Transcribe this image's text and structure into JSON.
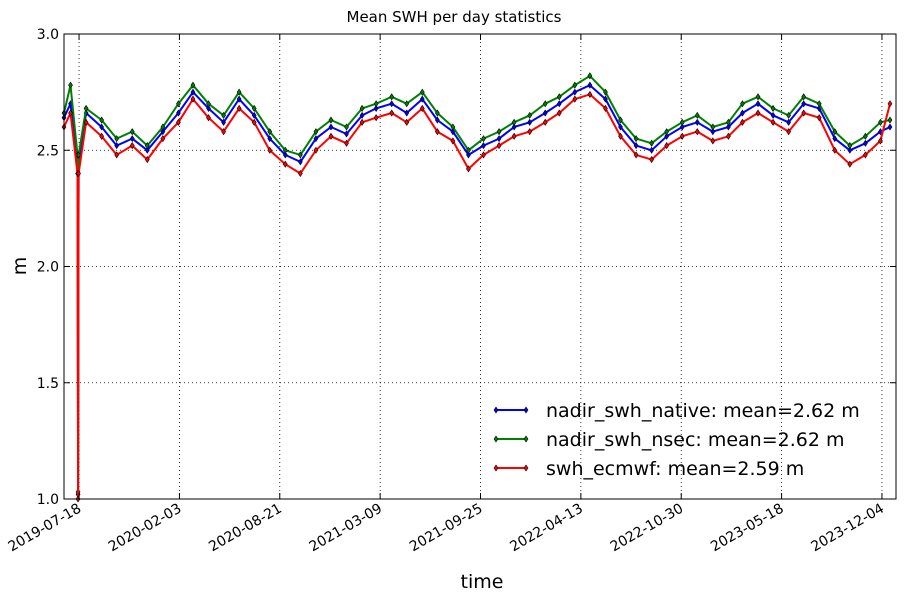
{
  "chart_data": {
    "type": "line",
    "title": "Mean SWH per day statistics",
    "xlabel": "time",
    "ylabel": "m",
    "ylim": [
      1.0,
      3.0
    ],
    "xlim": [
      "2019-06-18",
      "2024-01-01"
    ],
    "y_ticks": [
      "1.0",
      "1.5",
      "2.0",
      "2.5",
      "3.0"
    ],
    "x_ticks": [
      "2019-07-18",
      "2020-02-03",
      "2020-08-21",
      "2021-03-09",
      "2021-09-25",
      "2022-04-13",
      "2022-10-30",
      "2023-05-18",
      "2023-12-04"
    ],
    "grid": true,
    "legend_position": "lower-right",
    "series": [
      {
        "name": "nadir_swh_native: mean=2.62 m",
        "color": "#0000ff",
        "x": [
          "2019-06-18",
          "2019-07-01",
          "2019-07-15",
          "2019-07-16",
          "2019-07-17",
          "2019-08-01",
          "2019-09-01",
          "2019-10-01",
          "2019-11-01",
          "2019-12-01",
          "2020-01-01",
          "2020-02-01",
          "2020-03-01",
          "2020-04-01",
          "2020-05-01",
          "2020-06-01",
          "2020-07-01",
          "2020-08-01",
          "2020-09-01",
          "2020-10-01",
          "2020-11-01",
          "2020-12-01",
          "2021-01-01",
          "2021-02-01",
          "2021-03-01",
          "2021-04-01",
          "2021-05-01",
          "2021-06-01",
          "2021-07-01",
          "2021-08-01",
          "2021-09-01",
          "2021-10-01",
          "2021-11-01",
          "2021-12-01",
          "2022-01-01",
          "2022-02-01",
          "2022-03-01",
          "2022-04-01",
          "2022-05-01",
          "2022-06-01",
          "2022-07-01",
          "2022-08-01",
          "2022-09-01",
          "2022-10-01",
          "2022-11-01",
          "2022-12-01",
          "2023-01-01",
          "2023-02-01",
          "2023-03-01",
          "2023-04-01",
          "2023-05-01",
          "2023-06-01",
          "2023-07-01",
          "2023-08-01",
          "2023-09-01",
          "2023-10-01",
          "2023-11-01",
          "2023-12-01",
          "2023-12-20"
        ],
        "values": [
          2.64,
          2.7,
          2.45,
          1.02,
          2.45,
          2.66,
          2.6,
          2.52,
          2.55,
          2.5,
          2.58,
          2.66,
          2.75,
          2.68,
          2.62,
          2.72,
          2.65,
          2.55,
          2.48,
          2.45,
          2.55,
          2.6,
          2.57,
          2.65,
          2.68,
          2.7,
          2.66,
          2.72,
          2.63,
          2.58,
          2.48,
          2.52,
          2.55,
          2.6,
          2.62,
          2.66,
          2.7,
          2.75,
          2.78,
          2.72,
          2.6,
          2.52,
          2.5,
          2.56,
          2.6,
          2.62,
          2.58,
          2.6,
          2.66,
          2.7,
          2.65,
          2.62,
          2.7,
          2.68,
          2.55,
          2.5,
          2.53,
          2.58,
          2.6
        ]
      },
      {
        "name": "nadir_swh_nsec: mean=2.62 m",
        "color": "#008000",
        "x": [
          "2019-06-18",
          "2019-07-01",
          "2019-07-15",
          "2019-07-16",
          "2019-07-17",
          "2019-08-01",
          "2019-09-01",
          "2019-10-01",
          "2019-11-01",
          "2019-12-01",
          "2020-01-01",
          "2020-02-01",
          "2020-03-01",
          "2020-04-01",
          "2020-05-01",
          "2020-06-01",
          "2020-07-01",
          "2020-08-01",
          "2020-09-01",
          "2020-10-01",
          "2020-11-01",
          "2020-12-01",
          "2021-01-01",
          "2021-02-01",
          "2021-03-01",
          "2021-04-01",
          "2021-05-01",
          "2021-06-01",
          "2021-07-01",
          "2021-08-01",
          "2021-09-01",
          "2021-10-01",
          "2021-11-01",
          "2021-12-01",
          "2022-01-01",
          "2022-02-01",
          "2022-03-01",
          "2022-04-01",
          "2022-05-01",
          "2022-06-01",
          "2022-07-01",
          "2022-08-01",
          "2022-09-01",
          "2022-10-01",
          "2022-11-01",
          "2022-12-01",
          "2023-01-01",
          "2023-02-01",
          "2023-03-01",
          "2023-04-01",
          "2023-05-01",
          "2023-06-01",
          "2023-07-01",
          "2023-08-01",
          "2023-09-01",
          "2023-10-01",
          "2023-11-01",
          "2023-12-01",
          "2023-12-20"
        ],
        "values": [
          2.66,
          2.78,
          2.48,
          1.03,
          2.48,
          2.68,
          2.63,
          2.55,
          2.58,
          2.52,
          2.6,
          2.7,
          2.78,
          2.7,
          2.65,
          2.75,
          2.68,
          2.58,
          2.5,
          2.48,
          2.58,
          2.63,
          2.6,
          2.68,
          2.7,
          2.73,
          2.7,
          2.75,
          2.66,
          2.6,
          2.5,
          2.55,
          2.58,
          2.62,
          2.65,
          2.7,
          2.73,
          2.78,
          2.82,
          2.75,
          2.63,
          2.55,
          2.53,
          2.58,
          2.62,
          2.65,
          2.6,
          2.62,
          2.7,
          2.73,
          2.68,
          2.65,
          2.73,
          2.7,
          2.58,
          2.52,
          2.56,
          2.62,
          2.63
        ]
      },
      {
        "name": "swh_ecmwf: mean=2.59 m",
        "color": "#ff0000",
        "x": [
          "2019-06-18",
          "2019-07-01",
          "2019-07-15",
          "2019-07-16",
          "2019-07-17",
          "2019-08-01",
          "2019-09-01",
          "2019-10-01",
          "2019-11-01",
          "2019-12-01",
          "2020-01-01",
          "2020-02-01",
          "2020-03-01",
          "2020-04-01",
          "2020-05-01",
          "2020-06-01",
          "2020-07-01",
          "2020-08-01",
          "2020-09-01",
          "2020-10-01",
          "2020-11-01",
          "2020-12-01",
          "2021-01-01",
          "2021-02-01",
          "2021-03-01",
          "2021-04-01",
          "2021-05-01",
          "2021-06-01",
          "2021-07-01",
          "2021-08-01",
          "2021-09-01",
          "2021-10-01",
          "2021-11-01",
          "2021-12-01",
          "2022-01-01",
          "2022-02-01",
          "2022-03-01",
          "2022-04-01",
          "2022-05-01",
          "2022-06-01",
          "2022-07-01",
          "2022-08-01",
          "2022-09-01",
          "2022-10-01",
          "2022-11-01",
          "2022-12-01",
          "2023-01-01",
          "2023-02-01",
          "2023-03-01",
          "2023-04-01",
          "2023-05-01",
          "2023-06-01",
          "2023-07-01",
          "2023-08-01",
          "2023-09-01",
          "2023-10-01",
          "2023-11-01",
          "2023-12-01",
          "2023-12-20"
        ],
        "values": [
          2.6,
          2.66,
          2.4,
          1.0,
          2.4,
          2.62,
          2.56,
          2.48,
          2.52,
          2.46,
          2.55,
          2.62,
          2.72,
          2.64,
          2.58,
          2.68,
          2.62,
          2.5,
          2.44,
          2.4,
          2.5,
          2.56,
          2.53,
          2.62,
          2.64,
          2.66,
          2.62,
          2.68,
          2.58,
          2.54,
          2.42,
          2.48,
          2.52,
          2.56,
          2.58,
          2.62,
          2.66,
          2.72,
          2.74,
          2.68,
          2.56,
          2.48,
          2.46,
          2.52,
          2.56,
          2.58,
          2.54,
          2.56,
          2.62,
          2.66,
          2.62,
          2.58,
          2.66,
          2.64,
          2.5,
          2.44,
          2.48,
          2.54,
          2.7
        ]
      }
    ]
  }
}
